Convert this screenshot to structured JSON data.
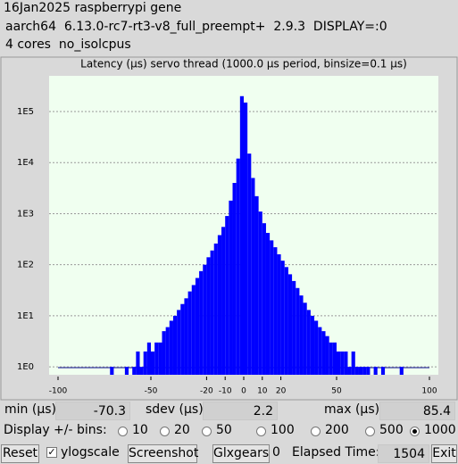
{
  "header": {
    "lines": [
      "16Jan2025 raspberrypi gene",
      "aarch64  6.13.0-rc7-rt3-v8_full_preempt+  2.9.3  DISPLAY=:0",
      "4 cores  no_isolcpus"
    ]
  },
  "chart_data": {
    "type": "histogram",
    "title": "Latency (µs) servo thread (1000.0 µs period, binsize=0.1 µs)",
    "bins": [
      -72,
      -70,
      -68,
      -66,
      -64,
      -62,
      -60,
      -58,
      -56,
      -54,
      -52,
      -50,
      -48,
      -46,
      -44,
      -42,
      -40,
      -38,
      -36,
      -34,
      -32,
      -30,
      -28,
      -26,
      -24,
      -22,
      -20,
      -18,
      -16,
      -14,
      -12,
      -10,
      -8,
      -6,
      -4,
      -2,
      0,
      2,
      4,
      6,
      8,
      10,
      12,
      14,
      16,
      18,
      20,
      22,
      24,
      26,
      28,
      30,
      32,
      34,
      36,
      38,
      40,
      42,
      44,
      46,
      48,
      50,
      52,
      54,
      56,
      58,
      60,
      62,
      64,
      66,
      68,
      70,
      72,
      74,
      76,
      78,
      80,
      82,
      84,
      86,
      88
    ],
    "values": [
      1,
      0,
      0,
      0,
      1,
      0,
      1,
      2,
      1,
      2,
      3,
      2,
      3,
      3,
      5,
      6,
      8,
      10,
      13,
      17,
      22,
      30,
      40,
      55,
      75,
      100,
      140,
      190,
      260,
      380,
      550,
      900,
      1800,
      4000,
      12000,
      200000,
      150000,
      15000,
      5000,
      2200,
      1100,
      650,
      420,
      300,
      220,
      160,
      120,
      90,
      65,
      48,
      35,
      25,
      18,
      13,
      10,
      8,
      6,
      5,
      4,
      3,
      3,
      2,
      2,
      2,
      1,
      2,
      1,
      1,
      1,
      1,
      0,
      1,
      0,
      1,
      0,
      0,
      0,
      0,
      1,
      0
    ],
    "color": "#0000ff",
    "xlim": [
      -100,
      100
    ],
    "xticks": [
      -100,
      -50,
      -20,
      -10,
      0,
      10,
      20,
      50,
      100
    ],
    "ylim": [
      0.7,
      500000
    ],
    "log_scale": true,
    "yticks": [
      {
        "value": 1,
        "label": "1E0"
      },
      {
        "value": 10,
        "label": "1E1"
      },
      {
        "value": 100,
        "label": "1E2"
      },
      {
        "value": 1000,
        "label": "1E3"
      },
      {
        "value": 10000,
        "label": "1E4"
      },
      {
        "value": 100000,
        "label": "1E5"
      }
    ],
    "grid": true
  },
  "stats": {
    "min_label": "min (µs)",
    "min": -70.3,
    "sdev_label": "sdev (µs)",
    "sdev": 2.2,
    "max_label": "max (µs)",
    "max": 85.4
  },
  "bins_control": {
    "label": "Display +/- bins:",
    "options": [
      10,
      20,
      50,
      100,
      200,
      500,
      1000
    ],
    "selected": 6
  },
  "buttons": {
    "reset": "Reset",
    "ylogscale": "ylogscale",
    "screenshot": "Screenshot",
    "glxgears": "Glxgears",
    "glxgears_count": 0,
    "elapsed_label": "Elapsed Time:",
    "elapsed": 1504,
    "exit": "Exit"
  }
}
